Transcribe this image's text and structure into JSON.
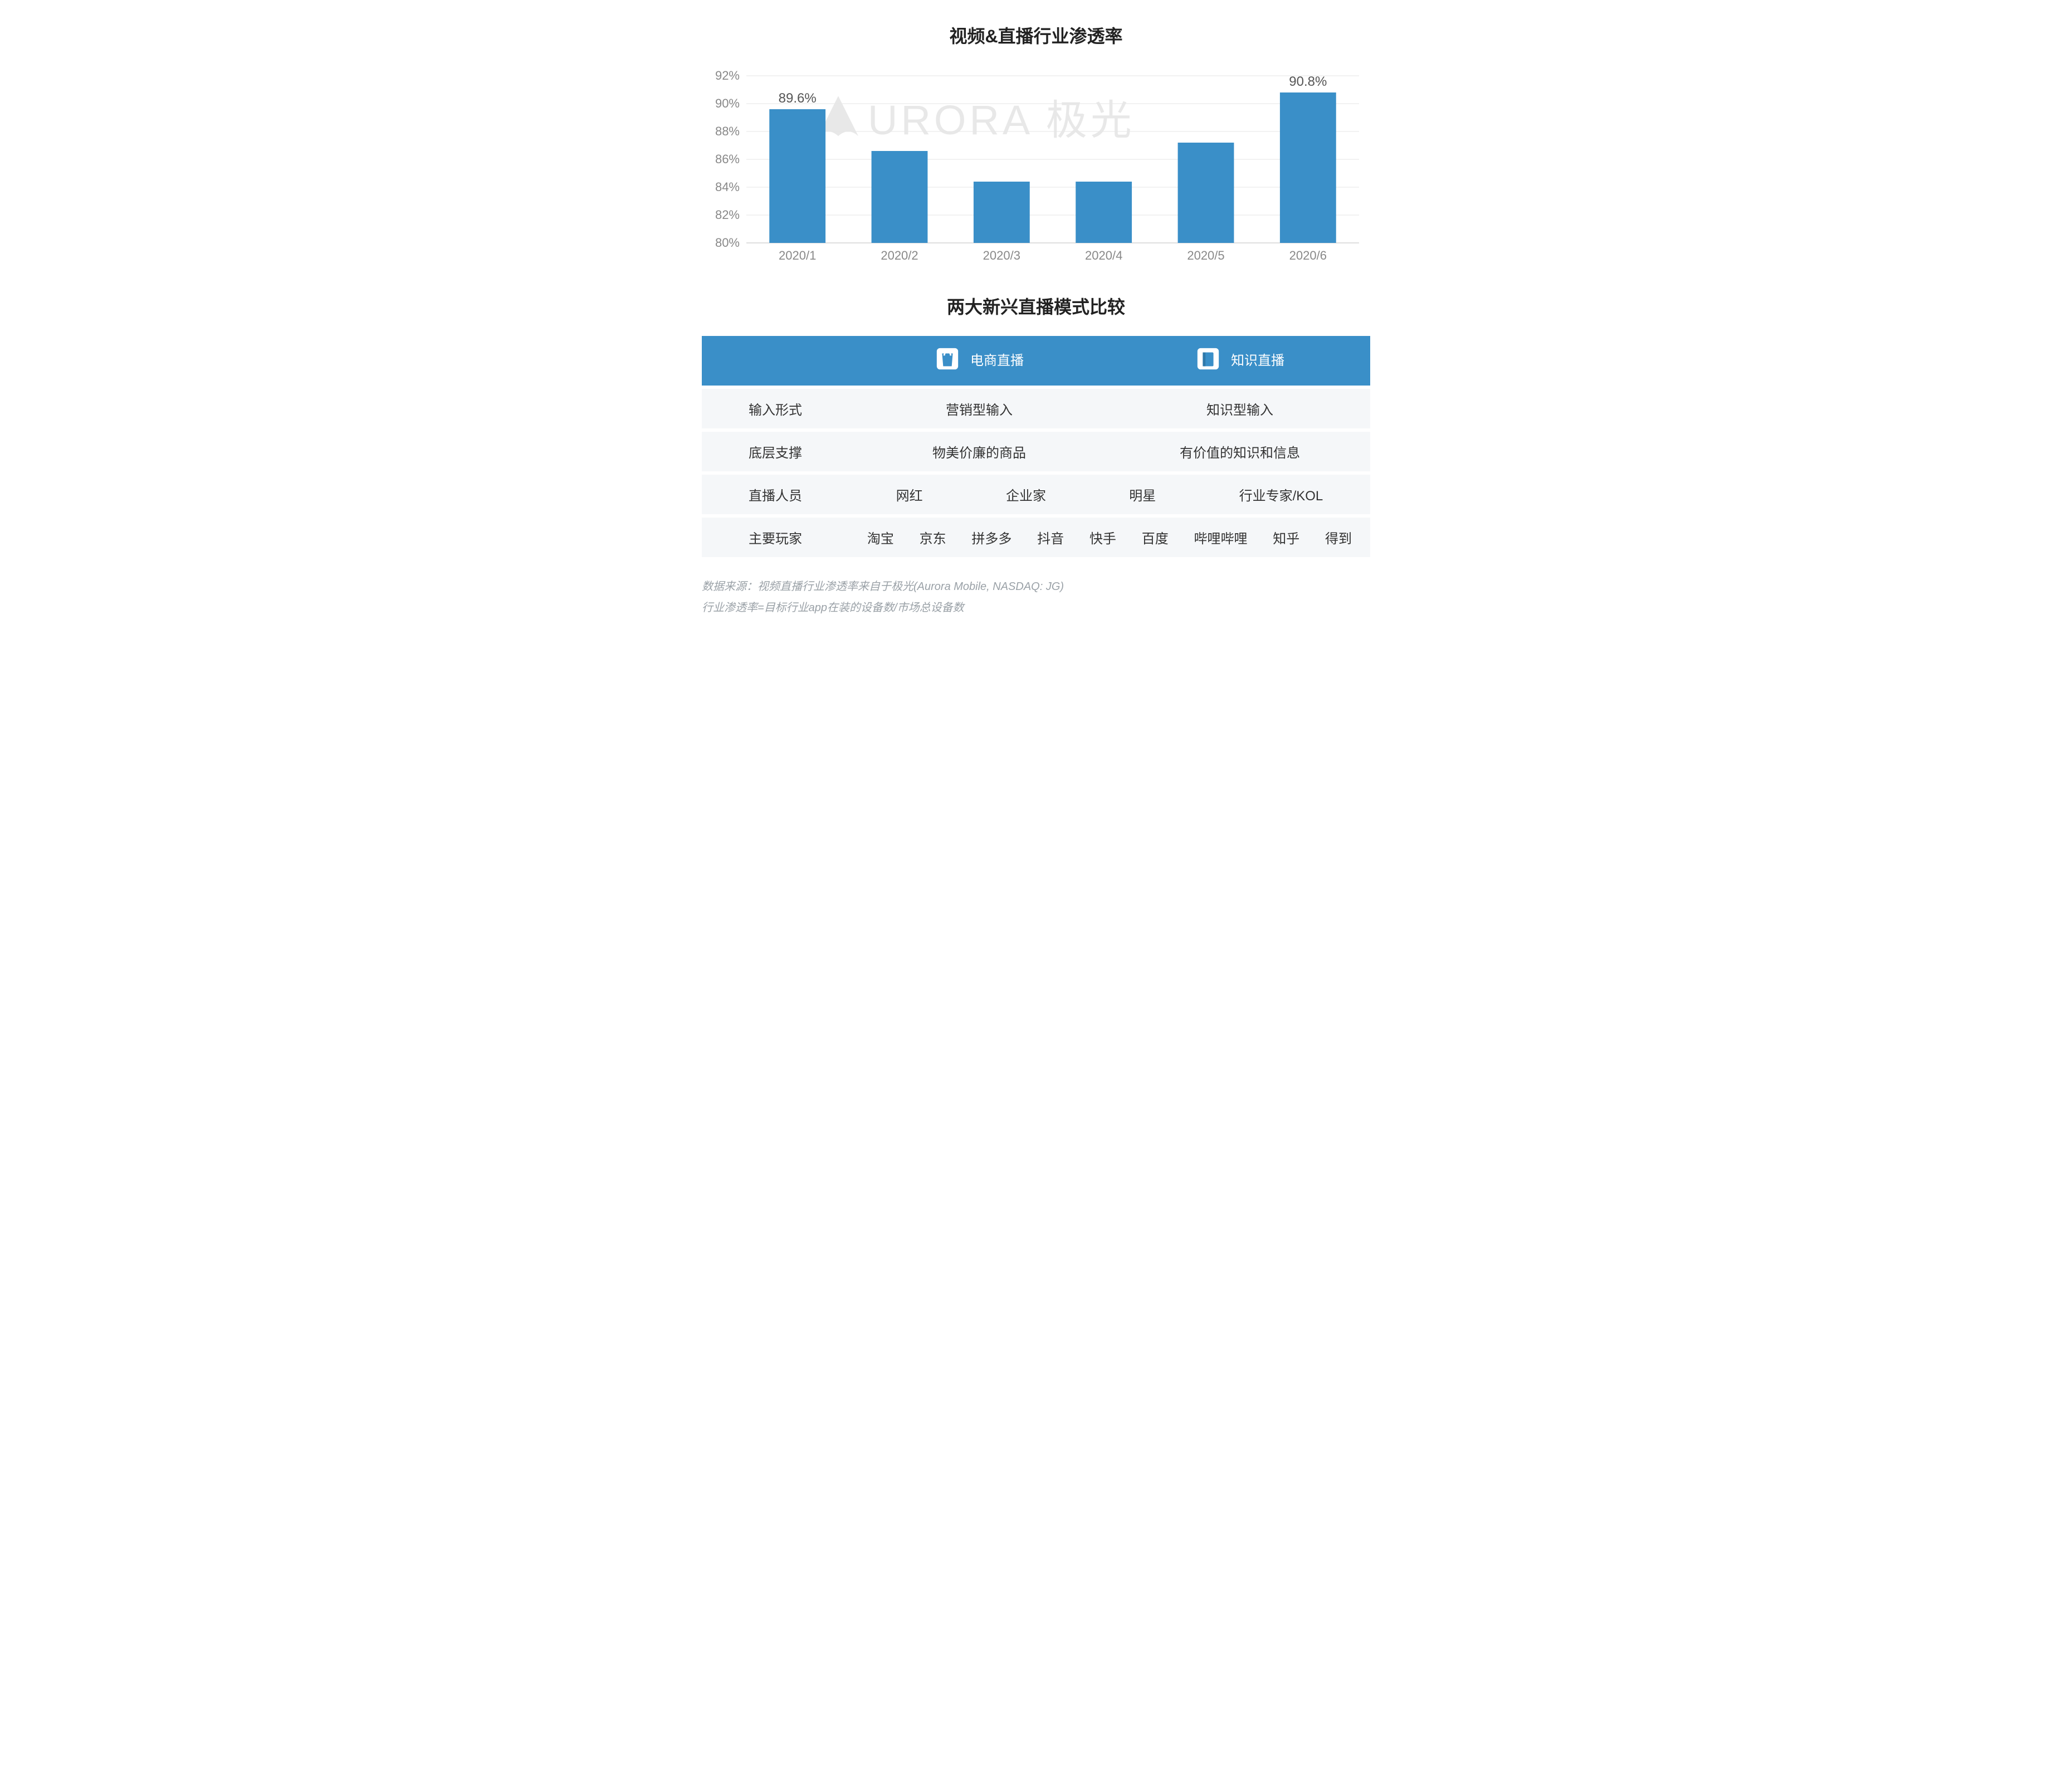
{
  "chart": {
    "title": "视频&直播行业渗透率",
    "type": "bar",
    "categories": [
      "2020/1",
      "2020/2",
      "2020/3",
      "2020/4",
      "2020/5",
      "2020/6"
    ],
    "values": [
      89.6,
      86.6,
      84.4,
      84.4,
      87.2,
      90.8
    ],
    "show_value_label": [
      true,
      false,
      false,
      false,
      false,
      true
    ],
    "value_labels": [
      "89.6%",
      "",
      "",
      "",
      "",
      "90.8%"
    ],
    "bar_color": "#3a8fc8",
    "ylim": [
      80,
      92
    ],
    "ytick_step": 2,
    "ytick_labels": [
      "80%",
      "82%",
      "84%",
      "86%",
      "88%",
      "90%",
      "92%"
    ],
    "grid_color": "#e6e6e6",
    "axis_color": "#bfbfbf",
    "tick_font_color": "#888888",
    "tick_fontsize": 22,
    "title_fontsize": 32,
    "bar_width_ratio": 0.55,
    "background_color": "#ffffff",
    "watermark_text": "URORA 极光",
    "watermark_color": "#e8e8e8"
  },
  "table": {
    "title": "两大新兴直播模式比较",
    "header_bg": "#3a8fc8",
    "header_fg": "#ffffff",
    "rowlabel_bg": "#dfe8ef",
    "cell_bg": "#f5f7f9",
    "cell_fg": "#333333",
    "fontsize": 24,
    "col1_header": "电商直播",
    "col2_header": "知识直播",
    "col1_icon": "shopping-bag-icon",
    "col2_icon": "book-icon",
    "rows_simple": [
      {
        "label": "输入形式",
        "col1": "营销型输入",
        "col2": "知识型输入"
      },
      {
        "label": "底层支撑",
        "col1": "物美价廉的商品",
        "col2": "有价值的知识和信息"
      }
    ],
    "row_people": {
      "label": "直播人员",
      "items": [
        "网红",
        "企业家",
        "明星",
        "行业专家/KOL"
      ]
    },
    "row_players": {
      "label": "主要玩家",
      "items": [
        "淘宝",
        "京东",
        "拼多多",
        "抖音",
        "快手",
        "百度",
        "哔哩哔哩",
        "知乎",
        "得到"
      ]
    }
  },
  "footnote": {
    "line1": "数据来源：视频直播行业渗透率来自于极光(Aurora Mobile, NASDAQ: JG)",
    "line2": "行业渗透率=目标行业app在装的设备数/市场总设备数",
    "color": "#9aa1a7",
    "fontsize": 20
  }
}
